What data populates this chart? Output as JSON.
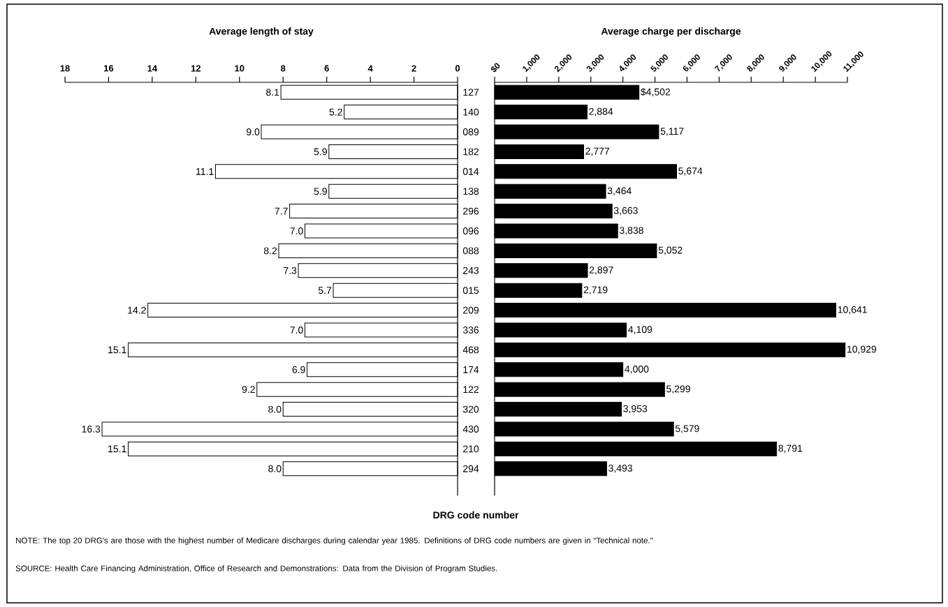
{
  "chart_data": [
    {
      "type": "bar",
      "orientation": "horizontal",
      "title": "Average length of stay",
      "tick_labels": "x",
      "categories": [
        "127",
        "140",
        "089",
        "182",
        "014",
        "138",
        "296",
        "096",
        "088",
        "243",
        "015",
        "209",
        "336",
        "468",
        "174",
        "122",
        "320",
        "430",
        "210",
        "294"
      ],
      "values": [
        8.1,
        5.2,
        9.0,
        5.9,
        11.1,
        5.9,
        7.7,
        7.0,
        8.2,
        7.3,
        5.7,
        14.2,
        7.0,
        15.1,
        6.9,
        9.2,
        8.0,
        16.3,
        15.1,
        8.0
      ],
      "value_labels": [
        "8.1",
        "5.2",
        "9.0",
        "5.9",
        "11.1",
        "5.9",
        "7.7",
        "7.0",
        "8.2",
        "7.3",
        "5.7",
        "14.2",
        "7.0",
        "15.1",
        "6.9",
        "9.2",
        "8.0",
        "16.3",
        "15.1",
        "8.0"
      ],
      "color": "#ffffff",
      "xlim": [
        18,
        0
      ],
      "xticks": [
        0,
        2,
        4,
        6,
        8,
        10,
        12,
        14,
        16,
        18
      ]
    },
    {
      "type": "bar",
      "orientation": "horizontal",
      "title": "Average charge per discharge",
      "categories": [
        "127",
        "140",
        "089",
        "182",
        "014",
        "138",
        "296",
        "096",
        "088",
        "243",
        "015",
        "209",
        "336",
        "468",
        "174",
        "122",
        "320",
        "430",
        "210",
        "294"
      ],
      "values": [
        4502,
        2884,
        5117,
        2777,
        5674,
        3464,
        3663,
        3838,
        5052,
        2897,
        2719,
        10641,
        4109,
        10929,
        4000,
        5299,
        3953,
        5579,
        8791,
        3493
      ],
      "value_labels": [
        "$4,502",
        "2,884",
        "5,117",
        "2,777",
        "5,674",
        "3,464",
        "3,663",
        "3,838",
        "5,052",
        "2,897",
        "2,719",
        "10,641",
        "4,109",
        "10,929",
        "4,000",
        "5,299",
        "3,953",
        "5,579",
        "8,791",
        "3,493"
      ],
      "color": "#000000",
      "xlim": [
        0,
        11000
      ],
      "xticks": [
        {
          "value": 0,
          "label": "$0"
        },
        {
          "value": 1000,
          "label": "1,000"
        },
        {
          "value": 2000,
          "label": "2,000"
        },
        {
          "value": 3000,
          "label": "3,000"
        },
        {
          "value": 4000,
          "label": "4,000"
        },
        {
          "value": 5000,
          "label": "5,000"
        },
        {
          "value": 6000,
          "label": "6,000"
        },
        {
          "value": 7000,
          "label": "7,000"
        },
        {
          "value": 8000,
          "label": "8,000"
        },
        {
          "value": 9000,
          "label": "9,000"
        },
        {
          "value": 10000,
          "label": "10,000"
        },
        {
          "value": 11000,
          "label": "11,000"
        }
      ],
      "annotations": [
        "DRG code number",
        "NOTE: The top 20 DRG's are those with the highest number of Medicare discharges during calendar year 1985. Definitions of DRG code numbers are given in “Technical note.”",
        "SOURCE: Health Care Financing Administration, Office of Research and Demonstrations: Data from the Division of Program Studies."
      ]
    }
  ]
}
